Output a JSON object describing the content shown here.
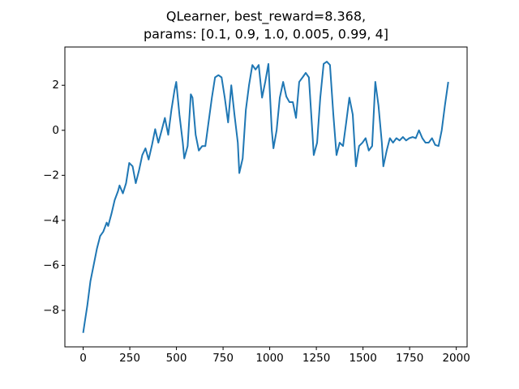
{
  "chart_data": {
    "type": "line",
    "title": [
      "QLearner, best_reward=8.368,",
      "params: [0.1, 0.9, 1.0, 0.005, 0.99, 4]"
    ],
    "x": [
      0,
      9,
      22,
      39,
      56,
      74,
      91,
      108,
      126,
      134,
      152,
      169,
      187,
      195,
      213,
      230,
      247,
      265,
      282,
      299,
      317,
      334,
      351,
      369,
      386,
      403,
      421,
      438,
      456,
      473,
      490,
      499,
      516,
      534,
      542,
      560,
      577,
      586,
      603,
      620,
      638,
      655,
      672,
      690,
      707,
      725,
      742,
      759,
      777,
      794,
      811,
      829,
      837,
      855,
      872,
      889,
      907,
      924,
      941,
      959,
      976,
      993,
      1011,
      1020,
      1037,
      1054,
      1072,
      1089,
      1106,
      1124,
      1141,
      1158,
      1176,
      1193,
      1210,
      1228,
      1236,
      1254,
      1271,
      1289,
      1306,
      1323,
      1341,
      1358,
      1375,
      1393,
      1410,
      1427,
      1445,
      1462,
      1479,
      1497,
      1514,
      1531,
      1549,
      1566,
      1583,
      1601,
      1609,
      1627,
      1644,
      1661,
      1679,
      1696,
      1714,
      1731,
      1748,
      1766,
      1783,
      1800,
      1818,
      1835,
      1852,
      1870,
      1887,
      1905,
      1922,
      1939,
      1957
    ],
    "series": [
      {
        "color": "#1f77b4",
        "values": [
          -9.0,
          -8.5,
          -7.8,
          -6.7,
          -6.0,
          -5.25,
          -4.7,
          -4.5,
          -4.1,
          -4.25,
          -3.7,
          -3.1,
          -2.7,
          -2.45,
          -2.8,
          -2.35,
          -1.45,
          -1.6,
          -2.35,
          -1.8,
          -1.1,
          -0.8,
          -1.3,
          -0.65,
          0.05,
          -0.55,
          0,
          0.55,
          -0.2,
          0.9,
          1.8,
          2.15,
          0.7,
          -0.55,
          -1.25,
          -0.7,
          1.6,
          1.45,
          -0.2,
          -0.9,
          -0.7,
          -0.7,
          0.35,
          1.45,
          2.35,
          2.45,
          2.35,
          1.45,
          0.35,
          2.0,
          0.7,
          -0.55,
          -1.9,
          -1.25,
          0.9,
          2.0,
          2.9,
          2.7,
          2.9,
          1.45,
          2.15,
          2.95,
          0,
          -0.8,
          0,
          1.45,
          2.15,
          1.5,
          1.25,
          1.25,
          0.55,
          2.15,
          2.35,
          2.55,
          2.35,
          0,
          -1.1,
          -0.55,
          1.45,
          2.95,
          3.05,
          2.9,
          0.7,
          -1.1,
          -0.55,
          -0.7,
          0.35,
          1.45,
          0.7,
          -1.6,
          -0.7,
          -0.55,
          -0.35,
          -0.9,
          -0.7,
          2.15,
          1.1,
          -0.55,
          -1.6,
          -0.9,
          -0.35,
          -0.55,
          -0.35,
          -0.45,
          -0.3,
          -0.45,
          -0.35,
          -0.3,
          -0.35,
          0,
          -0.35,
          -0.55,
          -0.55,
          -0.35,
          -0.65,
          -0.7,
          0,
          1.1,
          2.15
        ]
      }
    ],
    "xlim": [
      -98,
      2058
    ],
    "ylim": [
      -9.62,
      3.7
    ],
    "xticks": [
      0,
      250,
      500,
      750,
      1000,
      1250,
      1500,
      1750,
      2000
    ],
    "yticks": [
      {
        "value": -8,
        "label": "−8"
      },
      {
        "value": -6,
        "label": "−6"
      },
      {
        "value": -4,
        "label": "−4"
      },
      {
        "value": -2,
        "label": "−2"
      },
      0,
      2
    ]
  }
}
